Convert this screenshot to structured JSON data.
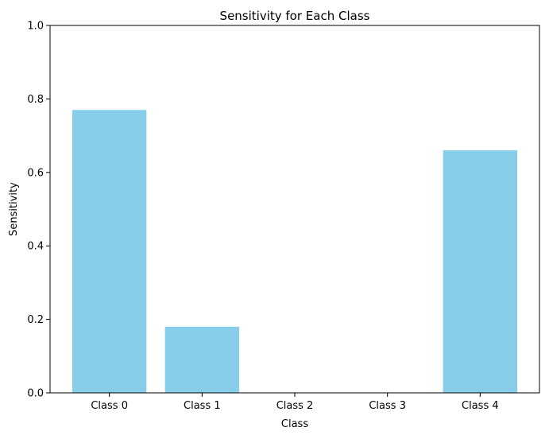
{
  "chart_data": {
    "type": "bar",
    "title": "Sensitivity for Each Class",
    "xlabel": "Class",
    "ylabel": "Sensitivity",
    "categories": [
      "Class 0",
      "Class 1",
      "Class 2",
      "Class 3",
      "Class 4"
    ],
    "values": [
      0.77,
      0.18,
      0.0,
      0.0,
      0.66
    ],
    "ylim": [
      0,
      1
    ],
    "yticks": [
      "0.0",
      "0.2",
      "0.4",
      "0.6",
      "0.8",
      "1.0"
    ],
    "ytick_values": [
      0,
      0.2,
      0.4,
      0.6,
      0.8,
      1.0
    ],
    "bar_color": "#87ceeb",
    "grid": false,
    "legend": "none"
  }
}
